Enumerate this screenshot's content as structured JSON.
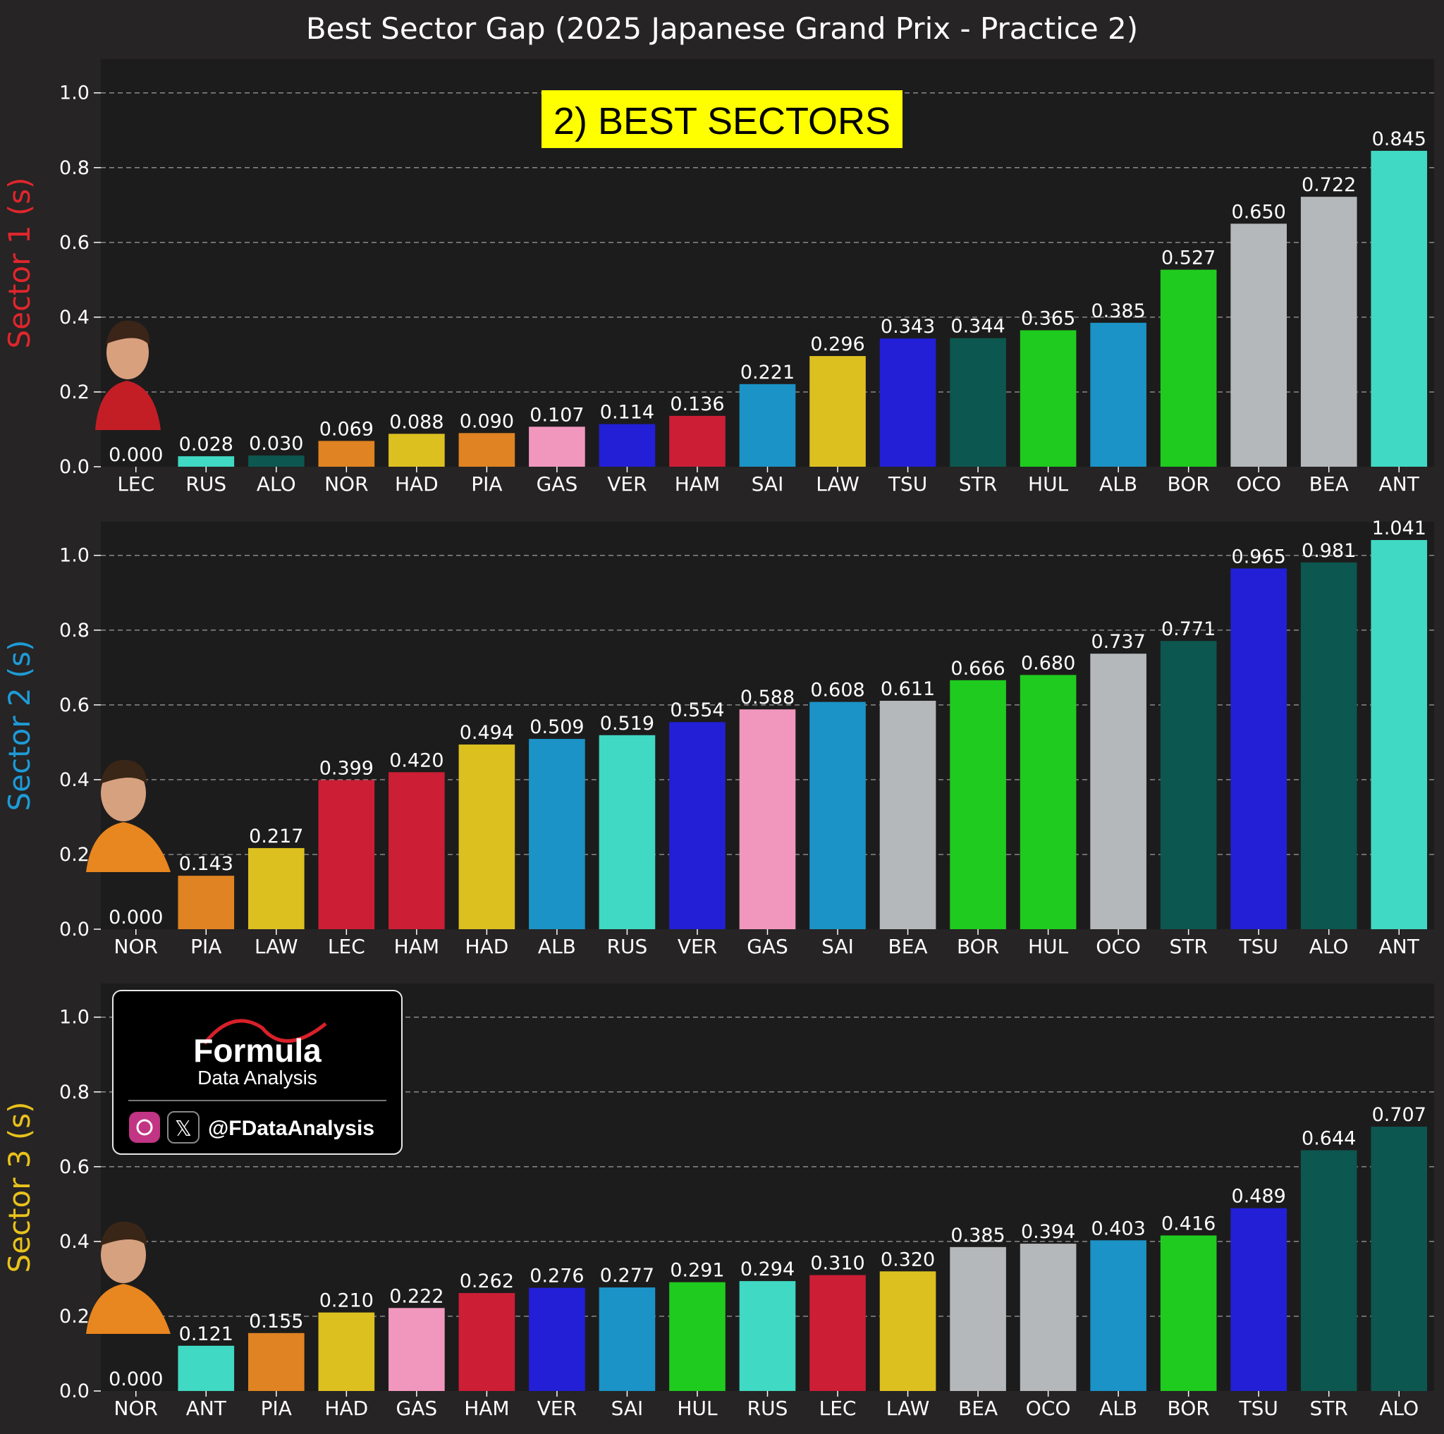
{
  "title": "Best Sector Gap (2025 Japanese Grand Prix - Practice 2)",
  "badge": "2) BEST SECTORS",
  "watermark": {
    "brand": "Formula",
    "subtitle": "Data Analysis",
    "handle": "@FDataAnalysis"
  },
  "colors": {
    "background": "#262424",
    "panel": "#1d1c1c",
    "sector1": "#e0262d",
    "sector2": "#1e9bd7",
    "sector3": "#e8c21c",
    "badge": "#ffff00"
  },
  "team_colors": {
    "LEC": "#cc1e35",
    "HAM": "#cc1e35",
    "RUS": "#40d9c3",
    "ANT": "#40d9c3",
    "ALO": "#0c574f",
    "STR": "#0c574f",
    "NOR": "#e08322",
    "PIA": "#e08322",
    "HAD": "#dcc020",
    "LAW": "#dcc020",
    "GAS": "#f197bd",
    "VER": "#221fd6",
    "TSU": "#221fd6",
    "SAI": "#1b93c6",
    "ALB": "#1b93c6",
    "HUL": "#1fcb1f",
    "BOR": "#1fcb1f",
    "OCO": "#b5b8ba",
    "BEA": "#b5b8ba"
  },
  "chart_data": [
    {
      "type": "bar",
      "ylabel": "Sector 1 (s)",
      "ylim": [
        0,
        1.09
      ],
      "yticks": [
        "0.0",
        "0.2",
        "0.4",
        "0.6",
        "0.8",
        "1.0"
      ],
      "grid": true,
      "categories": [
        "LEC",
        "RUS",
        "ALO",
        "NOR",
        "HAD",
        "PIA",
        "GAS",
        "VER",
        "HAM",
        "SAI",
        "LAW",
        "TSU",
        "STR",
        "HUL",
        "ALB",
        "BOR",
        "OCO",
        "BEA",
        "ANT"
      ],
      "values": [
        0.0,
        0.028,
        0.03,
        0.069,
        0.088,
        0.09,
        0.107,
        0.114,
        0.136,
        0.221,
        0.296,
        0.343,
        0.344,
        0.365,
        0.385,
        0.527,
        0.65,
        0.722,
        0.845
      ],
      "labels": [
        "0.000",
        "0.028",
        "0.030",
        "0.069",
        "0.088",
        "0.090",
        "0.107",
        "0.114",
        "0.136",
        "0.221",
        "0.296",
        "0.343",
        "0.344",
        "0.365",
        "0.385",
        "0.527",
        "0.650",
        "0.722",
        "0.845"
      ]
    },
    {
      "type": "bar",
      "ylabel": "Sector 2 (s)",
      "ylim": [
        0,
        1.09
      ],
      "yticks": [
        "0.0",
        "0.2",
        "0.4",
        "0.6",
        "0.8",
        "1.0"
      ],
      "grid": true,
      "categories": [
        "NOR",
        "PIA",
        "LAW",
        "LEC",
        "HAM",
        "HAD",
        "ALB",
        "RUS",
        "VER",
        "GAS",
        "SAI",
        "BEA",
        "BOR",
        "HUL",
        "OCO",
        "STR",
        "TSU",
        "ALO",
        "ANT"
      ],
      "values": [
        0.0,
        0.143,
        0.217,
        0.399,
        0.42,
        0.494,
        0.509,
        0.519,
        0.554,
        0.588,
        0.608,
        0.611,
        0.666,
        0.68,
        0.737,
        0.771,
        0.965,
        0.981,
        1.041
      ],
      "labels": [
        "0.000",
        "0.143",
        "0.217",
        "0.399",
        "0.420",
        "0.494",
        "0.509",
        "0.519",
        "0.554",
        "0.588",
        "0.608",
        "0.611",
        "0.666",
        "0.680",
        "0.737",
        "0.771",
        "0.965",
        "0.981",
        "1.041"
      ]
    },
    {
      "type": "bar",
      "ylabel": "Sector 3 (s)",
      "ylim": [
        0,
        1.09
      ],
      "yticks": [
        "0.0",
        "0.2",
        "0.4",
        "0.6",
        "0.8",
        "1.0"
      ],
      "grid": true,
      "categories": [
        "NOR",
        "ANT",
        "PIA",
        "HAD",
        "GAS",
        "HAM",
        "VER",
        "SAI",
        "HUL",
        "RUS",
        "LEC",
        "LAW",
        "BEA",
        "OCO",
        "ALB",
        "BOR",
        "TSU",
        "STR",
        "ALO"
      ],
      "values": [
        0.0,
        0.121,
        0.155,
        0.21,
        0.222,
        0.262,
        0.276,
        0.277,
        0.291,
        0.294,
        0.31,
        0.32,
        0.385,
        0.394,
        0.403,
        0.416,
        0.489,
        0.644,
        0.707
      ],
      "labels": [
        "0.000",
        "0.121",
        "0.155",
        "0.210",
        "0.222",
        "0.262",
        "0.276",
        "0.277",
        "0.291",
        "0.294",
        "0.310",
        "0.320",
        "0.385",
        "0.394",
        "0.403",
        "0.416",
        "0.489",
        "0.644",
        "0.707"
      ]
    }
  ]
}
